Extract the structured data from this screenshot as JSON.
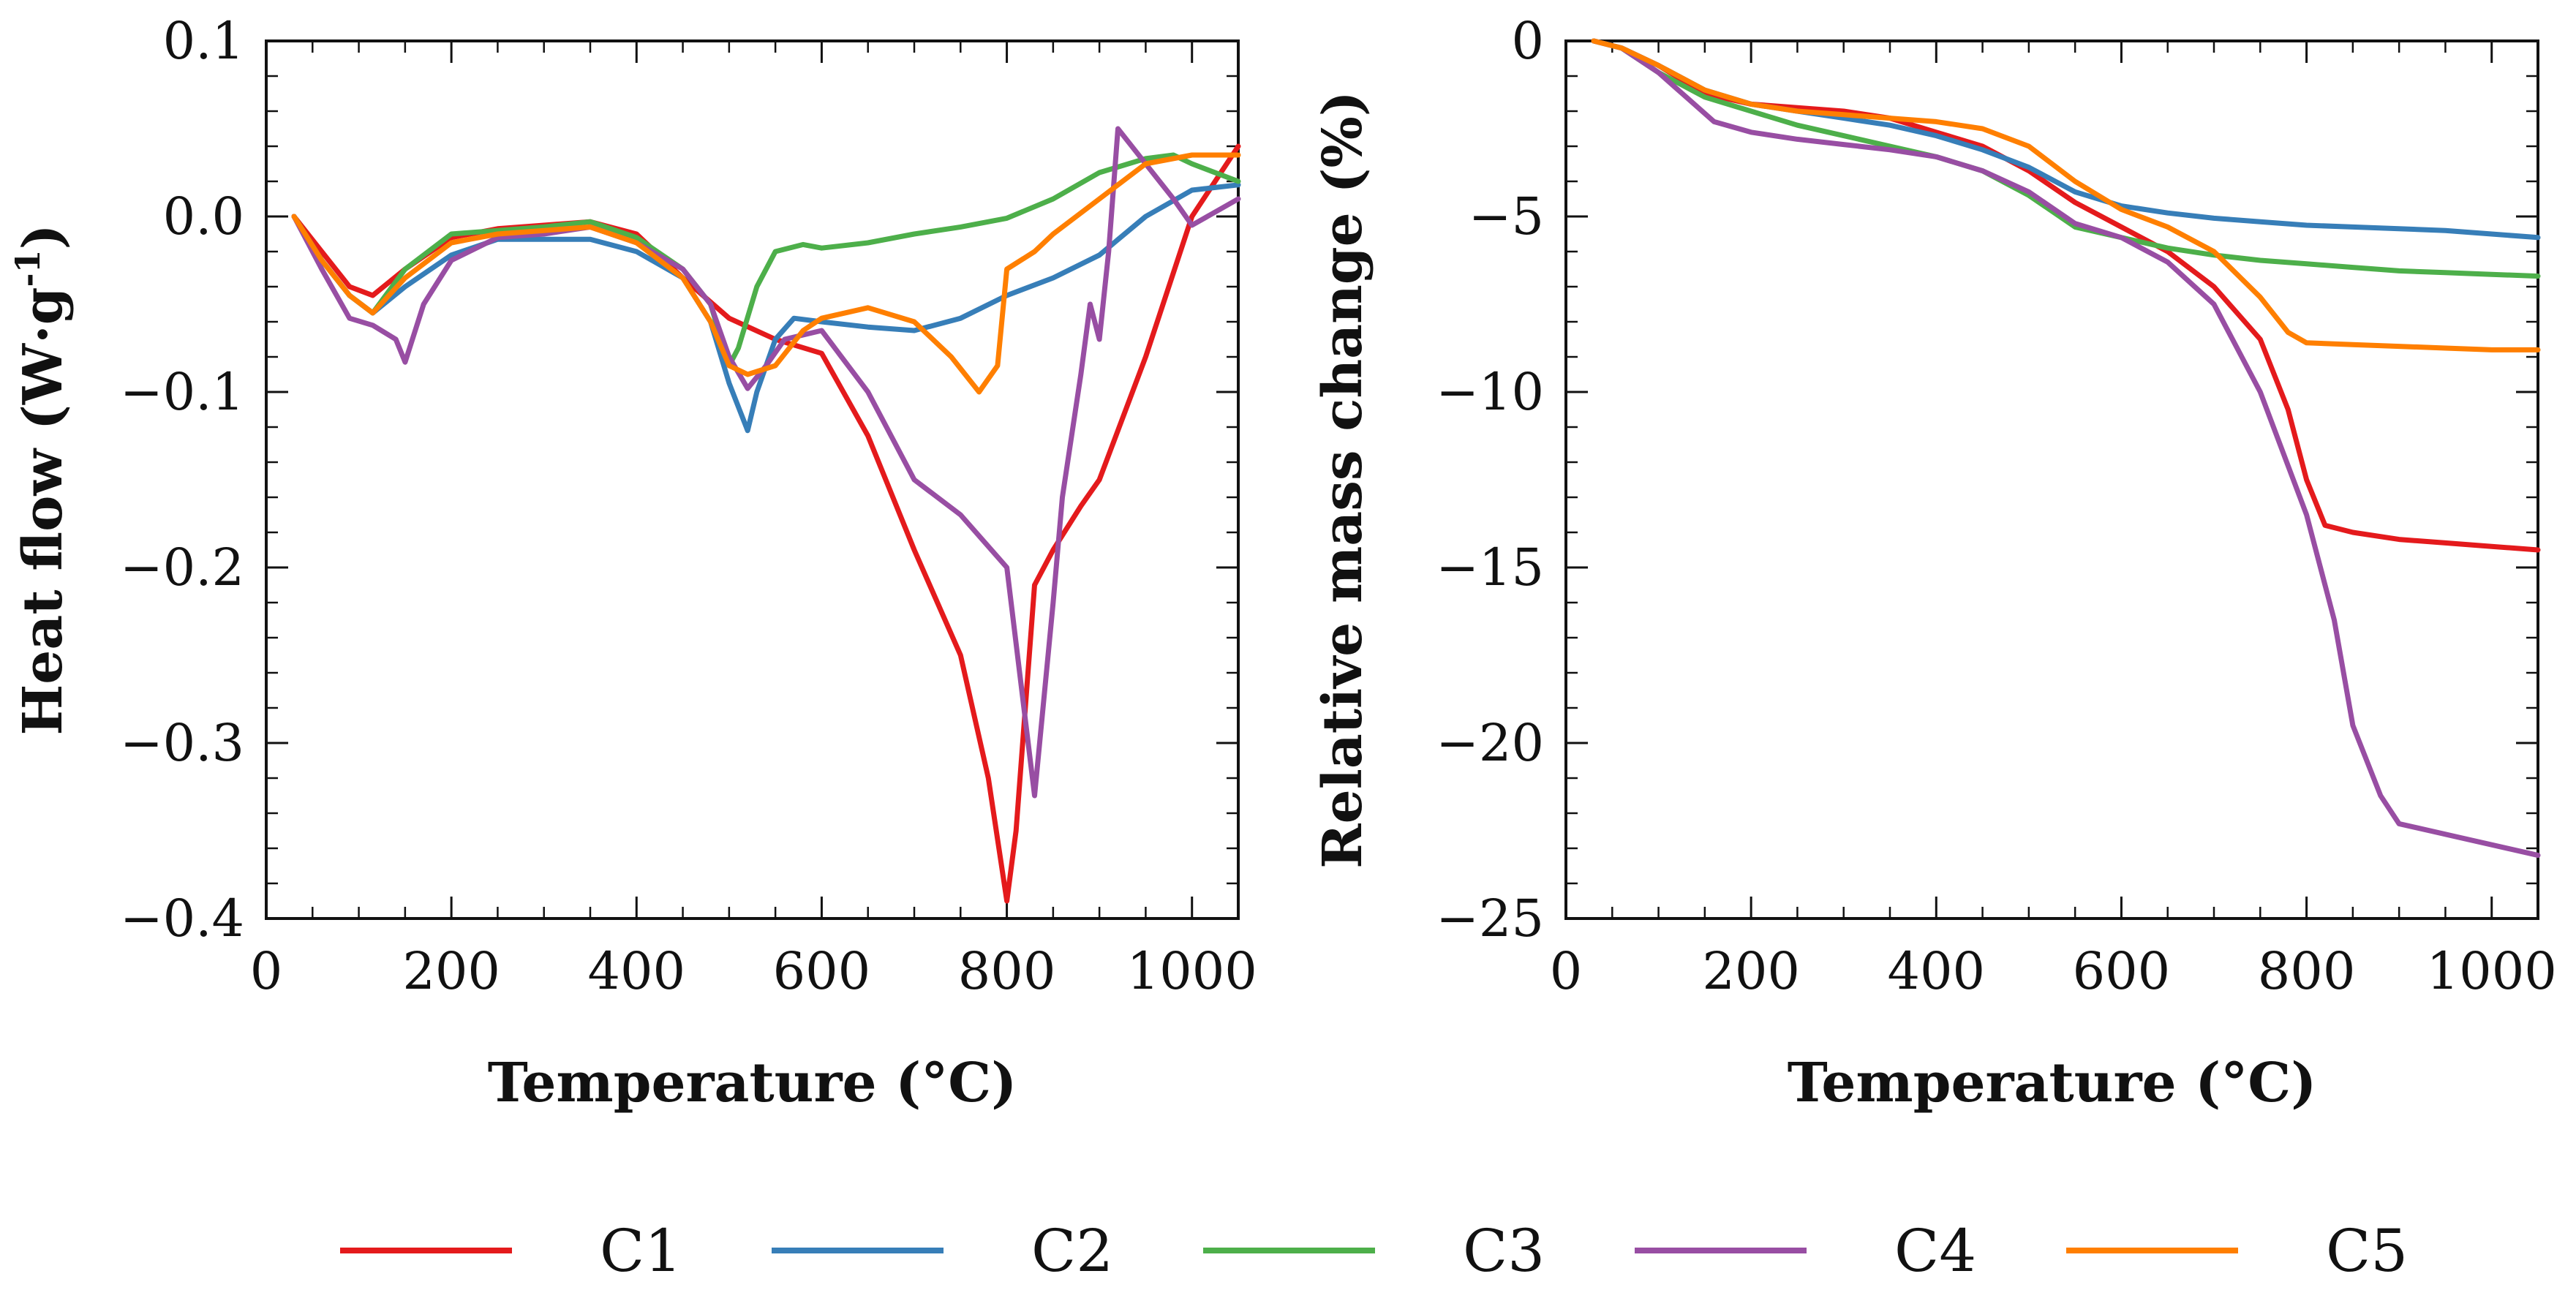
{
  "colors": {
    "C1": "#e41a1c",
    "C2": "#377eb8",
    "C3": "#4daf4a",
    "C4": "#984ea3",
    "C5": "#ff7f00"
  },
  "legend": [
    "C1",
    "C2",
    "C3",
    "C4",
    "C5"
  ],
  "chart_data": [
    {
      "type": "line",
      "title": "",
      "xlabel": "Temperature (°C)",
      "ylabel_main": "Heat flow (W·g",
      "ylabel_sup": "-1",
      "ylabel_tail": ")",
      "xlim": [
        0,
        1050
      ],
      "ylim": [
        -0.4,
        0.1
      ],
      "xticks": [
        0,
        200,
        400,
        600,
        800,
        1000
      ],
      "yticks": [
        0.1,
        0.0,
        -0.1,
        -0.2,
        -0.3,
        -0.4
      ],
      "xtick_labels": [
        "0",
        "200",
        "400",
        "600",
        "800",
        "1000"
      ],
      "ytick_labels": [
        "0.1",
        "0.0",
        "−0.1",
        "−0.2",
        "−0.3",
        "−0.4"
      ],
      "grid": false,
      "series": [
        {
          "name": "C1",
          "x": [
            30,
            60,
            90,
            115,
            150,
            200,
            250,
            300,
            350,
            400,
            450,
            500,
            550,
            600,
            650,
            700,
            750,
            780,
            800,
            810,
            830,
            850,
            880,
            900,
            950,
            1000,
            1050
          ],
          "y": [
            0,
            -0.02,
            -0.04,
            -0.045,
            -0.03,
            -0.012,
            -0.007,
            -0.005,
            -0.003,
            -0.01,
            -0.035,
            -0.058,
            -0.07,
            -0.078,
            -0.125,
            -0.19,
            -0.25,
            -0.32,
            -0.39,
            -0.35,
            -0.21,
            -0.19,
            -0.165,
            -0.15,
            -0.08,
            0.0,
            0.04
          ]
        },
        {
          "name": "C2",
          "x": [
            30,
            60,
            90,
            115,
            150,
            200,
            250,
            300,
            350,
            400,
            450,
            480,
            500,
            520,
            530,
            550,
            570,
            600,
            650,
            700,
            750,
            800,
            850,
            900,
            950,
            1000,
            1050
          ],
          "y": [
            0,
            -0.025,
            -0.045,
            -0.055,
            -0.04,
            -0.022,
            -0.013,
            -0.013,
            -0.013,
            -0.02,
            -0.035,
            -0.06,
            -0.095,
            -0.122,
            -0.1,
            -0.07,
            -0.058,
            -0.06,
            -0.063,
            -0.065,
            -0.058,
            -0.045,
            -0.035,
            -0.022,
            0.0,
            0.015,
            0.018
          ]
        },
        {
          "name": "C3",
          "x": [
            30,
            60,
            90,
            115,
            150,
            200,
            250,
            300,
            350,
            400,
            450,
            480,
            500,
            510,
            530,
            550,
            580,
            600,
            650,
            700,
            750,
            800,
            850,
            900,
            950,
            980,
            1000,
            1050
          ],
          "y": [
            0,
            -0.025,
            -0.045,
            -0.055,
            -0.03,
            -0.01,
            -0.008,
            -0.006,
            -0.003,
            -0.012,
            -0.03,
            -0.05,
            -0.085,
            -0.075,
            -0.04,
            -0.02,
            -0.016,
            -0.018,
            -0.015,
            -0.01,
            -0.006,
            -0.001,
            0.01,
            0.025,
            0.033,
            0.035,
            0.03,
            0.02
          ]
        },
        {
          "name": "C4",
          "x": [
            30,
            60,
            90,
            115,
            140,
            150,
            170,
            200,
            250,
            300,
            350,
            400,
            450,
            480,
            500,
            520,
            540,
            560,
            600,
            650,
            700,
            750,
            800,
            830,
            850,
            860,
            880,
            890,
            900,
            910,
            920,
            950,
            980,
            1000,
            1050
          ],
          "y": [
            0,
            -0.03,
            -0.058,
            -0.062,
            -0.07,
            -0.083,
            -0.05,
            -0.025,
            -0.012,
            -0.01,
            -0.006,
            -0.015,
            -0.03,
            -0.05,
            -0.08,
            -0.098,
            -0.085,
            -0.07,
            -0.065,
            -0.1,
            -0.15,
            -0.17,
            -0.2,
            -0.33,
            -0.22,
            -0.16,
            -0.09,
            -0.05,
            -0.07,
            -0.02,
            0.05,
            0.03,
            0.01,
            -0.005,
            0.01
          ]
        },
        {
          "name": "C5",
          "x": [
            30,
            60,
            90,
            115,
            150,
            200,
            250,
            300,
            350,
            400,
            450,
            480,
            500,
            520,
            550,
            580,
            600,
            650,
            700,
            740,
            770,
            790,
            800,
            830,
            850,
            900,
            950,
            1000,
            1050
          ],
          "y": [
            0,
            -0.025,
            -0.045,
            -0.055,
            -0.035,
            -0.015,
            -0.01,
            -0.008,
            -0.006,
            -0.015,
            -0.035,
            -0.06,
            -0.085,
            -0.09,
            -0.085,
            -0.065,
            -0.058,
            -0.052,
            -0.06,
            -0.08,
            -0.1,
            -0.085,
            -0.03,
            -0.02,
            -0.01,
            0.01,
            0.03,
            0.035,
            0.035
          ]
        }
      ]
    },
    {
      "type": "line",
      "title": "",
      "xlabel": "Temperature (°C)",
      "ylabel": "Relative mass change (%)",
      "xlim": [
        0,
        1050
      ],
      "ylim": [
        -25,
        0
      ],
      "xticks": [
        0,
        200,
        400,
        600,
        800,
        1000
      ],
      "yticks": [
        0,
        -5,
        -10,
        -15,
        -20,
        -25
      ],
      "xtick_labels": [
        "0",
        "200",
        "400",
        "600",
        "800",
        "1000"
      ],
      "ytick_labels": [
        "0",
        "−5",
        "−10",
        "−15",
        "−20",
        "−25"
      ],
      "grid": false,
      "series": [
        {
          "name": "C1",
          "x": [
            30,
            60,
            100,
            150,
            200,
            250,
            300,
            350,
            400,
            450,
            500,
            550,
            600,
            650,
            700,
            750,
            780,
            800,
            820,
            850,
            900,
            950,
            1000,
            1050
          ],
          "y": [
            0,
            -0.2,
            -0.7,
            -1.5,
            -1.8,
            -1.9,
            -2.0,
            -2.2,
            -2.6,
            -3.0,
            -3.7,
            -4.6,
            -5.3,
            -6.0,
            -7.0,
            -8.5,
            -10.5,
            -12.5,
            -13.8,
            -14.0,
            -14.2,
            -14.3,
            -14.4,
            -14.5
          ]
        },
        {
          "name": "C2",
          "x": [
            30,
            60,
            100,
            150,
            200,
            250,
            300,
            350,
            400,
            450,
            500,
            550,
            600,
            650,
            700,
            750,
            800,
            850,
            900,
            950,
            1000,
            1050
          ],
          "y": [
            0,
            -0.2,
            -0.7,
            -1.4,
            -1.8,
            -2.0,
            -2.2,
            -2.4,
            -2.7,
            -3.1,
            -3.6,
            -4.3,
            -4.7,
            -4.9,
            -5.05,
            -5.15,
            -5.25,
            -5.3,
            -5.35,
            -5.4,
            -5.5,
            -5.6
          ]
        },
        {
          "name": "C3",
          "x": [
            30,
            60,
            100,
            150,
            200,
            250,
            300,
            350,
            400,
            450,
            500,
            550,
            600,
            650,
            700,
            750,
            800,
            850,
            900,
            950,
            1000,
            1050
          ],
          "y": [
            0,
            -0.2,
            -0.9,
            -1.6,
            -2.0,
            -2.4,
            -2.7,
            -3.0,
            -3.3,
            -3.7,
            -4.4,
            -5.3,
            -5.6,
            -5.9,
            -6.1,
            -6.25,
            -6.35,
            -6.45,
            -6.55,
            -6.6,
            -6.65,
            -6.7
          ]
        },
        {
          "name": "C4",
          "x": [
            30,
            60,
            100,
            130,
            160,
            200,
            250,
            300,
            350,
            400,
            450,
            500,
            550,
            600,
            650,
            700,
            750,
            800,
            830,
            850,
            880,
            900,
            950,
            1000,
            1050
          ],
          "y": [
            0,
            -0.2,
            -0.9,
            -1.6,
            -2.3,
            -2.6,
            -2.8,
            -2.95,
            -3.1,
            -3.3,
            -3.7,
            -4.3,
            -5.2,
            -5.6,
            -6.3,
            -7.5,
            -10.0,
            -13.5,
            -16.5,
            -19.5,
            -21.5,
            -22.3,
            -22.6,
            -22.9,
            -23.2
          ]
        },
        {
          "name": "C5",
          "x": [
            30,
            60,
            100,
            150,
            200,
            250,
            300,
            350,
            400,
            450,
            500,
            550,
            600,
            650,
            700,
            750,
            780,
            800,
            850,
            900,
            950,
            1000,
            1050
          ],
          "y": [
            0,
            -0.2,
            -0.7,
            -1.4,
            -1.8,
            -2.0,
            -2.1,
            -2.2,
            -2.3,
            -2.5,
            -3.0,
            -4.0,
            -4.8,
            -5.3,
            -6.0,
            -7.3,
            -8.3,
            -8.6,
            -8.65,
            -8.7,
            -8.75,
            -8.8,
            -8.8
          ]
        }
      ]
    }
  ]
}
